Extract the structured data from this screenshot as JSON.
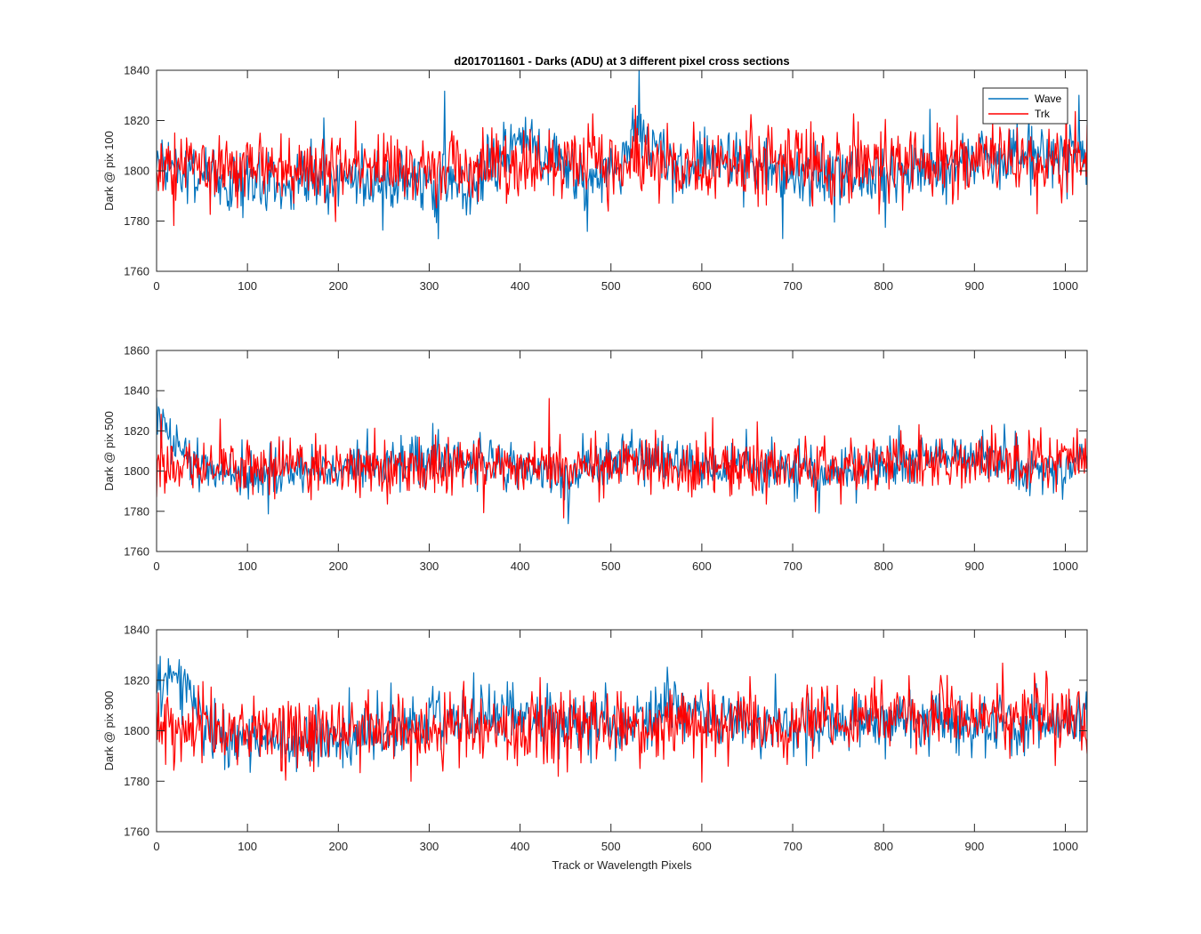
{
  "figure": {
    "title": "d2017011601 - Darks (ADU) at 3 different pixel cross sections",
    "xlabel": "Track or Wavelength Pixels"
  },
  "colors": {
    "wave": "#0072bd",
    "trk": "#ff0000",
    "axes": "#262626"
  },
  "chart_data": [
    {
      "type": "line",
      "ylabel": "Dark @ pix 100",
      "xlim": [
        0,
        1024
      ],
      "ylim": [
        1760,
        1840
      ],
      "xticks": [
        0,
        100,
        200,
        300,
        400,
        500,
        600,
        700,
        800,
        900,
        1000
      ],
      "yticks": [
        1760,
        1780,
        1800,
        1820,
        1840
      ],
      "grid": false,
      "legend": {
        "placement": "top-right",
        "entries": [
          "Wave",
          "Trk"
        ]
      },
      "series": [
        {
          "name": "Wave",
          "noise_std": 6,
          "control": [
            [
              0,
              1804
            ],
            [
              30,
              1799
            ],
            [
              60,
              1797
            ],
            [
              100,
              1795
            ],
            [
              150,
              1794
            ],
            [
              200,
              1797
            ],
            [
              250,
              1796
            ],
            [
              300,
              1794
            ],
            [
              340,
              1793
            ],
            [
              370,
              1800
            ],
            [
              395,
              1812
            ],
            [
              420,
              1809
            ],
            [
              450,
              1801
            ],
            [
              480,
              1794
            ],
            [
              510,
              1803
            ],
            [
              530,
              1818
            ],
            [
              550,
              1810
            ],
            [
              580,
              1800
            ],
            [
              620,
              1805
            ],
            [
              660,
              1801
            ],
            [
              700,
              1796
            ],
            [
              750,
              1797
            ],
            [
              800,
              1798
            ],
            [
              850,
              1800
            ],
            [
              900,
              1805
            ],
            [
              950,
              1808
            ],
            [
              1000,
              1806
            ],
            [
              1024,
              1806
            ]
          ]
        },
        {
          "name": "Trk",
          "noise_std": 7,
          "control": [
            [
              0,
              1802
            ],
            [
              200,
              1801
            ],
            [
              400,
              1802
            ],
            [
              600,
              1803
            ],
            [
              800,
              1803
            ],
            [
              1024,
              1803
            ]
          ]
        }
      ]
    },
    {
      "type": "line",
      "ylabel": "Dark @ pix 500",
      "xlim": [
        0,
        1024
      ],
      "ylim": [
        1760,
        1860
      ],
      "xticks": [
        0,
        100,
        200,
        300,
        400,
        500,
        600,
        700,
        800,
        900,
        1000
      ],
      "yticks": [
        1760,
        1780,
        1800,
        1820,
        1840,
        1860
      ],
      "grid": false,
      "series": [
        {
          "name": "Wave",
          "noise_std": 6,
          "control": [
            [
              0,
              1821
            ],
            [
              15,
              1820
            ],
            [
              30,
              1808
            ],
            [
              60,
              1798
            ],
            [
              150,
              1799
            ],
            [
              250,
              1803
            ],
            [
              350,
              1806
            ],
            [
              400,
              1802
            ],
            [
              450,
              1796
            ],
            [
              520,
              1808
            ],
            [
              600,
              1800
            ],
            [
              700,
              1802
            ],
            [
              800,
              1801
            ],
            [
              870,
              1810
            ],
            [
              950,
              1803
            ],
            [
              1000,
              1800
            ],
            [
              1024,
              1808
            ]
          ]
        },
        {
          "name": "Trk",
          "noise_std": 7,
          "control": [
            [
              0,
              1801
            ],
            [
              300,
              1802
            ],
            [
              600,
              1802
            ],
            [
              900,
              1804
            ],
            [
              1024,
              1806
            ]
          ]
        }
      ]
    },
    {
      "type": "line",
      "ylabel": "Dark @ pix 900",
      "xlim": [
        0,
        1024
      ],
      "ylim": [
        1760,
        1840
      ],
      "xticks": [
        0,
        100,
        200,
        300,
        400,
        500,
        600,
        700,
        800,
        900,
        1000
      ],
      "yticks": [
        1760,
        1780,
        1800,
        1820,
        1840
      ],
      "grid": false,
      "series": [
        {
          "name": "Wave",
          "noise_std": 6,
          "control": [
            [
              0,
              1815
            ],
            [
              20,
              1822
            ],
            [
              40,
              1812
            ],
            [
              70,
              1797
            ],
            [
              150,
              1796
            ],
            [
              250,
              1799
            ],
            [
              350,
              1805
            ],
            [
              400,
              1806
            ],
            [
              450,
              1803
            ],
            [
              520,
              1802
            ],
            [
              560,
              1808
            ],
            [
              620,
              1806
            ],
            [
              700,
              1801
            ],
            [
              800,
              1804
            ],
            [
              900,
              1802
            ],
            [
              950,
              1803
            ],
            [
              1024,
              1806
            ]
          ]
        },
        {
          "name": "Trk",
          "noise_std": 7,
          "control": [
            [
              0,
              1800
            ],
            [
              300,
              1801
            ],
            [
              600,
              1802
            ],
            [
              800,
              1806
            ],
            [
              1024,
              1805
            ]
          ]
        }
      ]
    }
  ]
}
